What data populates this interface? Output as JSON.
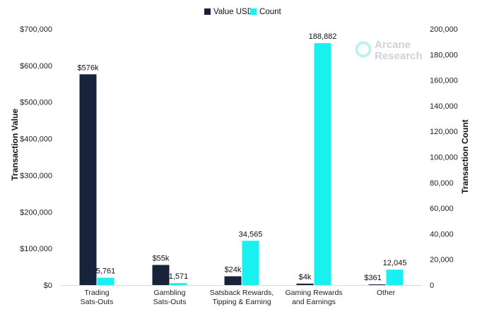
{
  "chart_data": {
    "type": "bar",
    "categories": [
      [
        "Trading",
        "Sats-Outs"
      ],
      [
        "Gambling",
        "Sats-Outs"
      ],
      [
        "Satsback Rewards,",
        "Tipping & Earning"
      ],
      [
        "Gaming Rewards",
        "and Earnings"
      ],
      [
        "Other"
      ]
    ],
    "series": [
      {
        "name": "Value USD",
        "axis": "left",
        "color": "#16233a",
        "values": [
          576000,
          55000,
          24000,
          4000,
          361
        ],
        "labels": [
          "$576k",
          "$55k",
          "$24k",
          "$4k",
          "$361"
        ]
      },
      {
        "name": "Count",
        "axis": "right",
        "color": "#19f0f0",
        "values": [
          5761,
          1571,
          34565,
          188882,
          12045
        ],
        "labels": [
          "5,761",
          "1,571",
          "34,565",
          "188,882",
          "12,045"
        ]
      }
    ],
    "ylabel": "Transaction Value",
    "y2label": "Transaction Count",
    "ylim": [
      0,
      700000
    ],
    "y2lim": [
      0,
      200000
    ],
    "yticks": [
      "$0",
      "$100,000",
      "$200,000",
      "$300,000",
      "$400,000",
      "$500,000",
      "$600,000",
      "$700,000"
    ],
    "y2ticks": [
      "0",
      "20,000",
      "40,000",
      "60,000",
      "80,000",
      "100,000",
      "120,000",
      "140,000",
      "160,000",
      "180,000",
      "200,000"
    ],
    "legend_position": "top-center",
    "grid": false
  },
  "watermark": {
    "line1": "Arcane",
    "line2": "Research",
    "color": "#cfd3d6"
  }
}
